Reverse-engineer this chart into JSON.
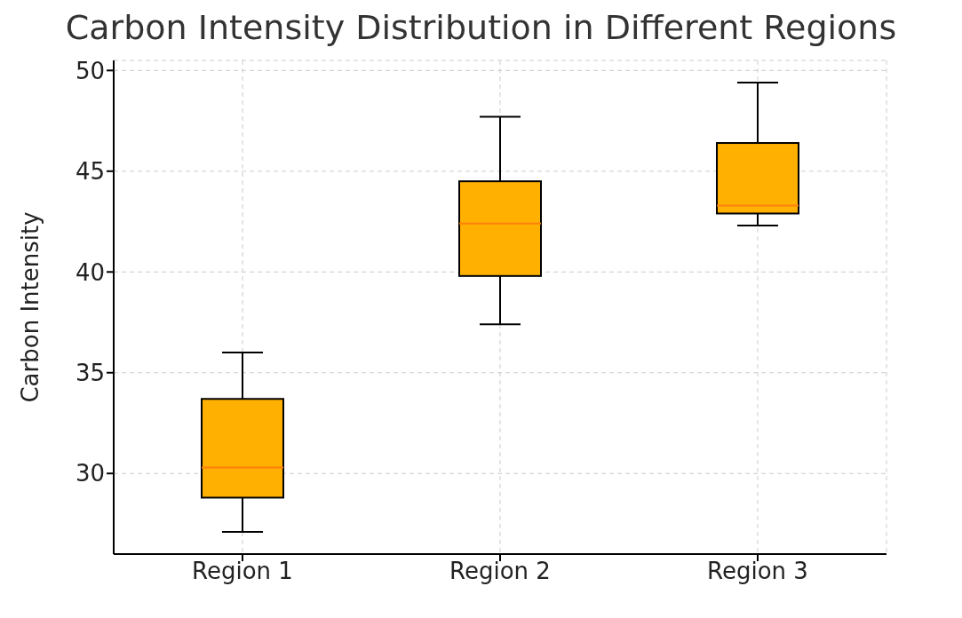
{
  "chart_data": {
    "type": "box",
    "title": "Carbon Intensity Distribution in Different Regions",
    "ylabel": "Carbon Intensity",
    "categories": [
      "Region 1",
      "Region 2",
      "Region 3"
    ],
    "color": "#ffb000",
    "boxes": [
      {
        "low": 27.1,
        "q1": 28.8,
        "median": 30.3,
        "q3": 33.7,
        "high": 36.0
      },
      {
        "low": 37.4,
        "q1": 39.8,
        "median": 42.4,
        "q3": 44.5,
        "high": 47.7
      },
      {
        "low": 42.3,
        "q1": 42.9,
        "median": 43.3,
        "q3": 46.4,
        "high": 49.4
      }
    ],
    "ylim": [
      26,
      50.5
    ],
    "yticks": [
      30,
      35,
      40,
      45,
      50
    ],
    "grid": true
  }
}
